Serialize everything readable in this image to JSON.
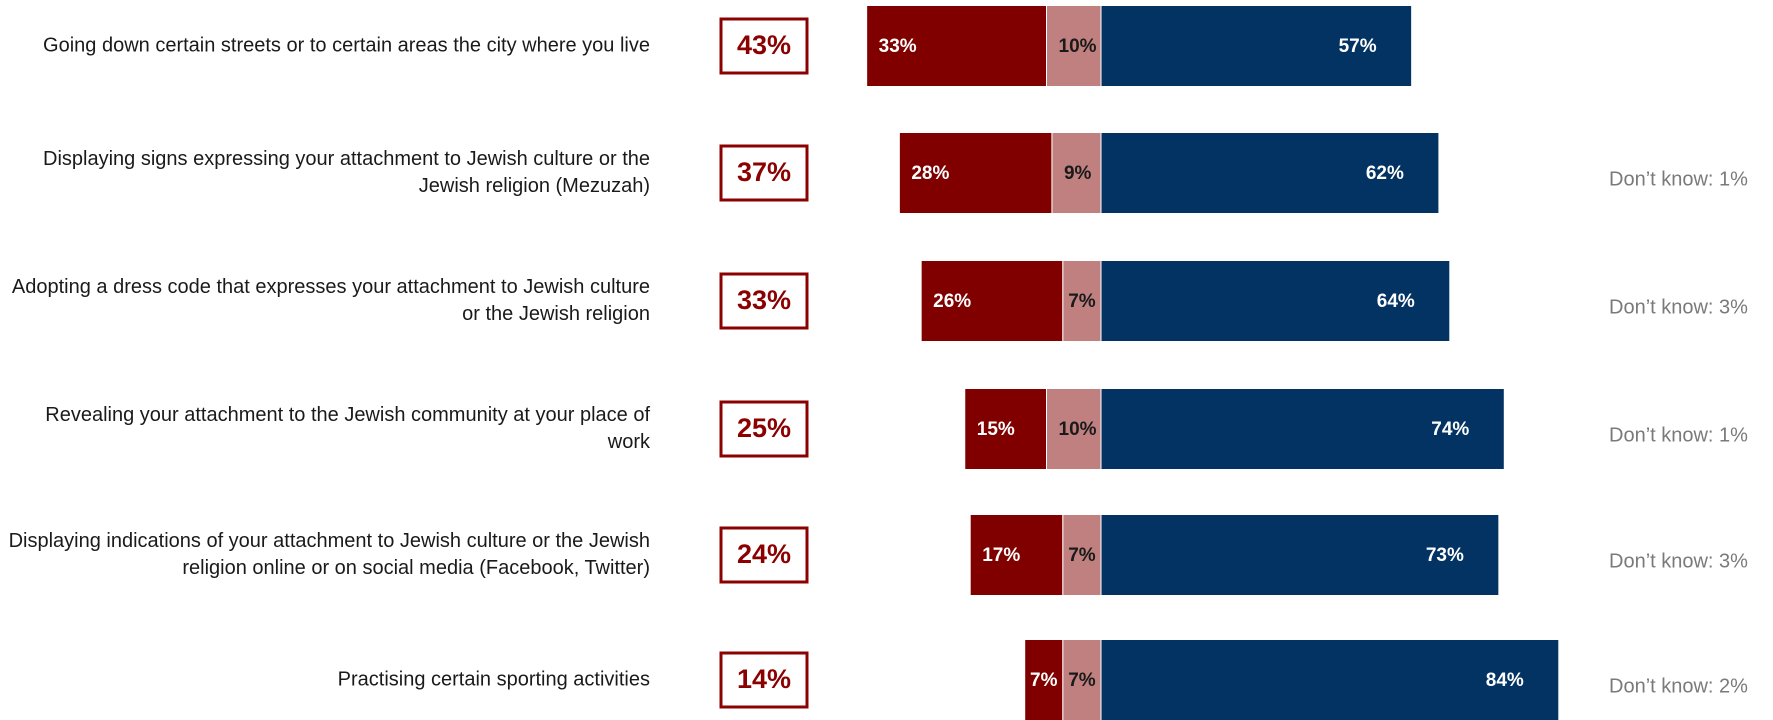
{
  "chart_data": {
    "type": "bar",
    "orientation": "horizontal",
    "categories": [
      "Going down certain streets or to certain areas the city where you live",
      "Displaying signs expressing your attachment to Jewish culture or the Jewish religion (Mezuzah)",
      "Adopting a dress code that expresses your attachment to Jewish culture or the Jewish religion",
      "Revealing your attachment to the Jewish community at your place of work",
      "Displaying indications of your attachment to Jewish culture or the Jewish religion online or on social media (Facebook, Twitter)",
      "Practising certain sporting activities"
    ],
    "net": [
      43,
      37,
      33,
      25,
      24,
      14
    ],
    "net_labels": [
      "43%",
      "37%",
      "33%",
      "25%",
      "24%",
      "14%"
    ],
    "net_color": "#8b0000",
    "series": [
      {
        "color": "#800000",
        "label_color": "#ffffff",
        "side": "left",
        "values": [
          33,
          28,
          26,
          15,
          17,
          7
        ],
        "value_labels": [
          "33%",
          "28%",
          "26%",
          "15%",
          "17%",
          "7%"
        ]
      },
      {
        "color": "#c08080",
        "label_color": "#1a1a1a",
        "side": "left",
        "values": [
          10,
          9,
          7,
          10,
          7,
          7
        ],
        "value_labels": [
          "10%",
          "9%",
          "7%",
          "10%",
          "7%",
          "7%"
        ]
      },
      {
        "color": "#033363",
        "label_color": "#ffffff",
        "side": "right",
        "values": [
          57,
          62,
          64,
          74,
          73,
          84
        ],
        "value_labels": [
          "57%",
          "62%",
          "64%",
          "74%",
          "73%",
          "84%"
        ]
      }
    ],
    "annotations": [
      null,
      "Don’t know: 1%",
      "Don’t know: 3%",
      "Don’t know: 1%",
      "Don’t know: 3%",
      "Don’t know: 2%"
    ]
  }
}
